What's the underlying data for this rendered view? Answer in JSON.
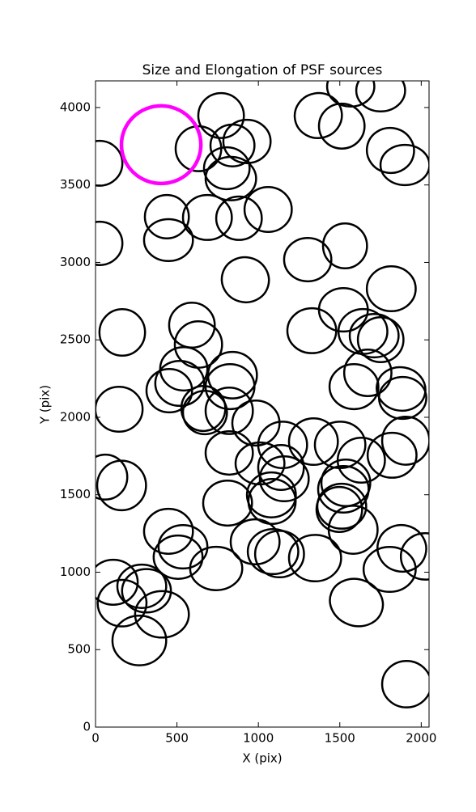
{
  "chart_data": {
    "type": "ellipse",
    "title": "Size and Elongation of PSF sources",
    "xlabel": "X (pix)",
    "ylabel": "Y (pix)",
    "xlim": [
      0,
      2048
    ],
    "ylim": [
      0,
      4172
    ],
    "xticks": [
      0,
      500,
      1000,
      1500,
      2000
    ],
    "yticks": [
      0,
      500,
      1000,
      1500,
      2000,
      2500,
      3000,
      3500,
      4000
    ],
    "color": "#000000",
    "x": [
      1368,
      1512,
      1567,
      1751,
      1811,
      1900,
      771,
      632,
      841,
      930,
      806,
      831,
      25,
      25,
      438,
      448,
      687,
      881,
      1060,
      1303,
      1532,
      920,
      1816,
      1522,
      1328,
      1642,
      1751,
      1711,
      164,
      592,
      632,
      542,
      841,
      826,
      517,
      453,
      662,
      672,
      821,
      985,
      144,
      1587,
      1672,
      1876,
      1886,
      1905,
      1821,
      1502,
      1338,
      1149,
      821,
      1010,
      1139,
      1159,
      1632,
      1537,
      1522,
      1512,
      1497,
      1582,
      1080,
      1084,
      811,
      60,
      160,
      448,
      537,
      507,
      741,
      980,
      1090,
      1130,
      1348,
      1806,
      1881,
      2025,
      109,
      284,
      313,
      163,
      408,
      269,
      1602,
      1910
    ],
    "y": [
      3948,
      3880,
      4136,
      4110,
      3723,
      3629,
      3948,
      3734,
      3755,
      3781,
      3608,
      3541,
      3640,
      3123,
      3295,
      3144,
      3290,
      3285,
      3342,
      3018,
      3107,
      2888,
      2830,
      2694,
      2559,
      2554,
      2501,
      2527,
      2548,
      2595,
      2470,
      2313,
      2272,
      2198,
      2219,
      2172,
      2057,
      2031,
      2042,
      1963,
      2052,
      2198,
      2287,
      2183,
      2125,
      1849,
      1755,
      1822,
      1843,
      1822,
      1770,
      1702,
      1676,
      1603,
      1723,
      1577,
      1535,
      1426,
      1405,
      1274,
      1499,
      1457,
      1446,
      1614,
      1560,
      1264,
      1164,
      1097,
      1024,
      1196,
      1133,
      1117,
      1091,
      1018,
      1154,
      1102,
      935,
      909,
      880,
      800,
      728,
      559,
      804,
      277
    ],
    "width": [
      290,
      280,
      290,
      300,
      290,
      300,
      280,
      280,
      270,
      290,
      280,
      310,
      280,
      280,
      270,
      300,
      300,
      280,
      290,
      290,
      270,
      290,
      300,
      300,
      300,
      300,
      280,
      300,
      280,
      280,
      290,
      290,
      300,
      300,
      300,
      280,
      270,
      270,
      290,
      290,
      290,
      300,
      290,
      300,
      290,
      290,
      300,
      310,
      300,
      300,
      290,
      300,
      280,
      300,
      290,
      300,
      310,
      300,
      280,
      300,
      300,
      290,
      300,
      270,
      300,
      300,
      300,
      300,
      320,
      300,
      310,
      300,
      320,
      320,
      300,
      300,
      300,
      300,
      300,
      300,
      330,
      330,
      330,
      300
    ],
    "height": [
      290,
      290,
      260,
      270,
      290,
      260,
      290,
      290,
      270,
      280,
      270,
      280,
      290,
      280,
      280,
      270,
      290,
      280,
      290,
      280,
      290,
      290,
      290,
      280,
      290,
      290,
      290,
      280,
      300,
      290,
      300,
      280,
      300,
      290,
      290,
      280,
      290,
      280,
      300,
      290,
      290,
      290,
      300,
      280,
      270,
      310,
      290,
      300,
      300,
      300,
      280,
      270,
      290,
      290,
      290,
      300,
      300,
      290,
      290,
      310,
      290,
      290,
      290,
      290,
      320,
      290,
      280,
      280,
      280,
      290,
      290,
      300,
      300,
      290,
      300,
      300,
      290,
      280,
      280,
      300,
      300,
      320,
      300,
      300
    ],
    "angle": [
      10,
      0,
      0,
      0,
      -10,
      0,
      0,
      0,
      0,
      0,
      0,
      0,
      0,
      0,
      0,
      0,
      0,
      0,
      0,
      0,
      0,
      -15,
      0,
      0,
      0,
      0,
      0,
      0,
      0,
      0,
      0,
      0,
      0,
      0,
      0,
      0,
      0,
      0,
      0,
      0,
      0,
      0,
      0,
      -10,
      0,
      0,
      0,
      0,
      0,
      0,
      0,
      0,
      0,
      0,
      0,
      0,
      0,
      0,
      0,
      0,
      0,
      0,
      0,
      0,
      0,
      0,
      0,
      0,
      0,
      0,
      0,
      0,
      0,
      0,
      -15,
      0,
      0,
      0,
      0,
      0,
      0,
      0,
      -20,
      0
    ],
    "highlight": {
      "x": 403,
      "y": 3760,
      "width": 488,
      "height": 501,
      "color": "#ff00ff"
    }
  }
}
